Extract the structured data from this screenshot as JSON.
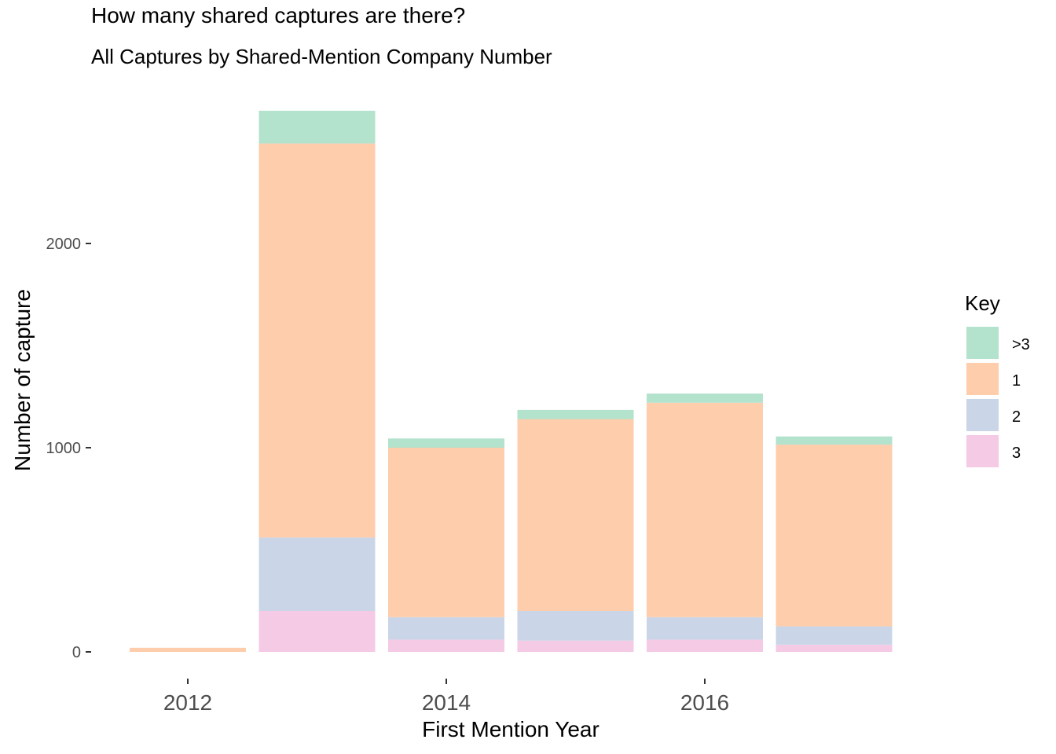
{
  "chart_data": {
    "type": "bar",
    "stacked": true,
    "title": "How many shared captures are there?",
    "subtitle": "All Captures by Shared-Mention Company Number",
    "xlabel": "First Mention Year",
    "ylabel": "Number of capture",
    "x": [
      2012,
      2013,
      2014,
      2015,
      2016,
      2017
    ],
    "x_tick_labels": [
      "2012",
      "2014",
      "2016"
    ],
    "x_ticks": [
      2012,
      2014,
      2016
    ],
    "y_ticks": [
      0,
      1000,
      2000
    ],
    "y_tick_labels": [
      "0",
      "1000",
      "2000"
    ],
    "ylim": [
      -130,
      2780
    ],
    "grid": false,
    "stack_order_bottom_to_top": [
      "3",
      "2",
      "1",
      ">3"
    ],
    "series": [
      {
        "name": ">3",
        "color": "#b3e2cd",
        "values": [
          0,
          160,
          45,
          45,
          45,
          40
        ]
      },
      {
        "name": "1",
        "color": "#fdcdac",
        "values": [
          20,
          1930,
          830,
          940,
          1050,
          890
        ]
      },
      {
        "name": "2",
        "color": "#cbd5e8",
        "values": [
          0,
          360,
          110,
          145,
          110,
          90
        ]
      },
      {
        "name": "3",
        "color": "#f4cae4",
        "values": [
          0,
          200,
          60,
          55,
          60,
          35
        ]
      }
    ],
    "legend": {
      "title": "Key",
      "position": "right",
      "entries": [
        ">3",
        "1",
        "2",
        "3"
      ]
    }
  }
}
